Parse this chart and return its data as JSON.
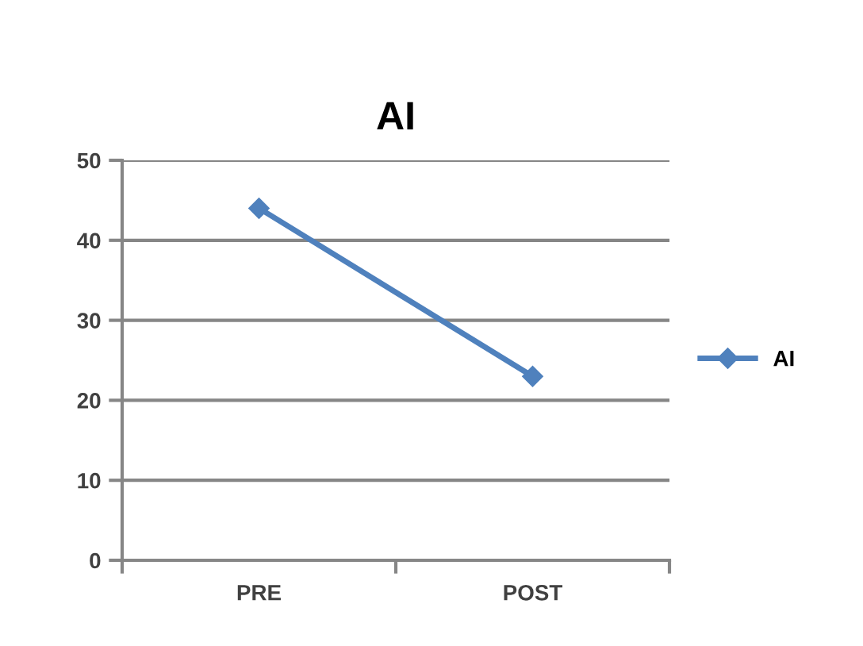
{
  "chart_data": {
    "type": "line",
    "title": "AI",
    "categories": [
      "PRE",
      "POST"
    ],
    "series": [
      {
        "name": "AI",
        "color": "#4f81bd",
        "values": [
          44,
          23
        ]
      }
    ],
    "ylim": [
      0,
      50
    ],
    "yticks": [
      0,
      10,
      20,
      30,
      40,
      50
    ],
    "grid": "y",
    "legend": "right",
    "marker": "diamond",
    "line_style": "solid"
  }
}
